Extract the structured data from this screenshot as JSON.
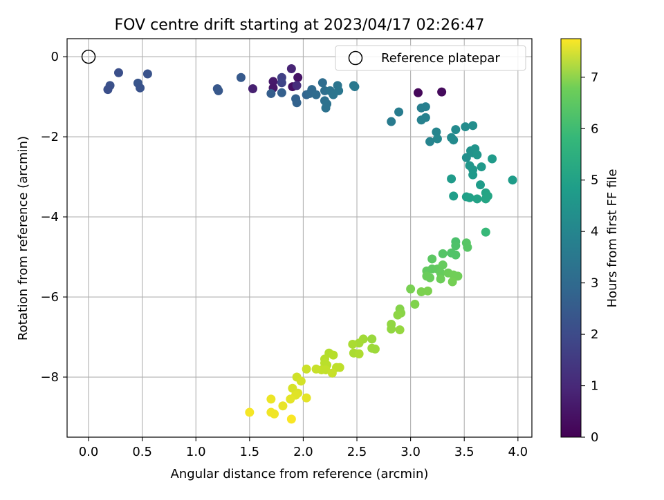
{
  "chart_data": {
    "type": "scatter",
    "title": "FOV centre drift starting at 2023/04/17 02:26:47",
    "xlabel": "Angular distance from reference (arcmin)",
    "ylabel": "Rotation from reference (arcmin)",
    "xlim": [
      -0.2,
      4.13
    ],
    "ylim": [
      -9.5,
      0.45
    ],
    "x_ticks": [
      0.0,
      0.5,
      1.0,
      1.5,
      2.0,
      2.5,
      3.0,
      3.5,
      4.0
    ],
    "x_tick_labels": [
      "0.0",
      "0.5",
      "1.0",
      "1.5",
      "2.0",
      "2.5",
      "3.0",
      "3.5",
      "4.0"
    ],
    "y_ticks": [
      0,
      -2,
      -4,
      -6,
      -8
    ],
    "y_tick_labels": [
      "0",
      "−2",
      "−4",
      "−6",
      "−8"
    ],
    "grid": true,
    "legend": {
      "position": "top-right",
      "entries": [
        "Reference platepar"
      ]
    },
    "reference_point": {
      "x": 0.0,
      "y": 0.0
    },
    "colorbar": {
      "label": "Hours from first FF file",
      "colormap": "viridis",
      "range": [
        0,
        7.75
      ],
      "ticks": [
        0,
        1,
        2,
        3,
        4,
        5,
        6,
        7
      ],
      "tick_labels": [
        "0",
        "1",
        "2",
        "3",
        "4",
        "5",
        "6",
        "7"
      ]
    },
    "points": [
      [
        1.9,
        -0.75,
        0.3
      ],
      [
        1.95,
        -0.52,
        0.4
      ],
      [
        1.72,
        -0.62,
        0.55
      ],
      [
        1.72,
        -0.78,
        0.5
      ],
      [
        1.53,
        -0.8,
        0.7
      ],
      [
        3.07,
        -0.9,
        0.15
      ],
      [
        3.29,
        -0.88,
        0.2
      ],
      [
        1.89,
        -0.3,
        0.8
      ],
      [
        1.94,
        -0.72,
        1.0
      ],
      [
        1.8,
        -0.52,
        1.5
      ],
      [
        1.8,
        -0.65,
        1.6
      ],
      [
        0.28,
        -0.4,
        1.9
      ],
      [
        0.55,
        -0.43,
        2.0
      ],
      [
        0.2,
        -0.72,
        1.95
      ],
      [
        0.18,
        -0.82,
        1.9
      ],
      [
        0.46,
        -0.66,
        2.05
      ],
      [
        0.48,
        -0.78,
        2.0
      ],
      [
        1.2,
        -0.8,
        2.1
      ],
      [
        1.21,
        -0.85,
        2.15
      ],
      [
        1.42,
        -0.52,
        2.2
      ],
      [
        1.7,
        -0.92,
        2.3
      ],
      [
        1.8,
        -0.9,
        2.35
      ],
      [
        1.93,
        -1.05,
        2.4
      ],
      [
        1.94,
        -1.15,
        2.45
      ],
      [
        2.03,
        -0.95,
        2.5
      ],
      [
        2.06,
        -0.92,
        2.6
      ],
      [
        2.08,
        -0.82,
        2.65
      ],
      [
        2.12,
        -0.95,
        2.7
      ],
      [
        2.18,
        -0.65,
        2.75
      ],
      [
        2.2,
        -0.85,
        2.8
      ],
      [
        2.2,
        -1.1,
        2.85
      ],
      [
        2.21,
        -1.28,
        2.9
      ],
      [
        2.22,
        -1.18,
        2.9
      ],
      [
        2.25,
        -0.85,
        2.95
      ],
      [
        2.28,
        -0.95,
        3.0
      ],
      [
        2.32,
        -0.72,
        3.0
      ],
      [
        2.33,
        -0.85,
        3.05
      ],
      [
        2.47,
        -0.72,
        3.1
      ],
      [
        2.48,
        -0.75,
        3.1
      ],
      [
        2.82,
        -1.62,
        3.2
      ],
      [
        2.89,
        -1.38,
        3.25
      ],
      [
        3.1,
        -1.28,
        3.3
      ],
      [
        3.14,
        -1.25,
        3.35
      ],
      [
        3.1,
        -1.58,
        3.4
      ],
      [
        3.14,
        -1.52,
        3.4
      ],
      [
        3.18,
        -2.12,
        3.5
      ],
      [
        3.24,
        -1.88,
        3.55
      ],
      [
        3.25,
        -2.05,
        3.6
      ],
      [
        3.38,
        -2.02,
        3.65
      ],
      [
        3.4,
        -2.08,
        3.7
      ],
      [
        3.42,
        -1.82,
        3.7
      ],
      [
        3.51,
        -1.75,
        3.75
      ],
      [
        3.58,
        -1.72,
        3.8
      ],
      [
        3.52,
        -2.52,
        3.85
      ],
      [
        3.56,
        -2.35,
        3.9
      ],
      [
        3.58,
        -2.4,
        3.95
      ],
      [
        3.6,
        -2.3,
        4.0
      ],
      [
        3.62,
        -2.45,
        4.05
      ],
      [
        3.55,
        -2.72,
        4.05
      ],
      [
        3.58,
        -2.82,
        4.1
      ],
      [
        3.58,
        -2.95,
        4.15
      ],
      [
        3.66,
        -2.75,
        4.15
      ],
      [
        3.76,
        -2.55,
        4.2
      ],
      [
        3.38,
        -3.05,
        4.2
      ],
      [
        3.65,
        -3.2,
        4.25
      ],
      [
        3.95,
        -3.08,
        4.25
      ],
      [
        3.4,
        -3.48,
        4.3
      ],
      [
        3.52,
        -3.5,
        4.35
      ],
      [
        3.55,
        -3.52,
        4.4
      ],
      [
        3.62,
        -3.55,
        4.45
      ],
      [
        3.7,
        -3.4,
        4.5
      ],
      [
        3.7,
        -3.55,
        4.55
      ],
      [
        3.72,
        -3.48,
        4.55
      ],
      [
        3.7,
        -4.38,
        5.2
      ],
      [
        3.42,
        -4.62,
        5.5
      ],
      [
        3.42,
        -4.72,
        5.55
      ],
      [
        3.38,
        -4.9,
        5.6
      ],
      [
        3.42,
        -4.95,
        5.6
      ],
      [
        3.3,
        -4.92,
        5.65
      ],
      [
        3.52,
        -4.65,
        5.7
      ],
      [
        3.53,
        -4.76,
        5.7
      ],
      [
        3.2,
        -5.05,
        5.75
      ],
      [
        3.2,
        -5.3,
        5.8
      ],
      [
        3.15,
        -5.35,
        5.85
      ],
      [
        3.25,
        -5.3,
        5.85
      ],
      [
        3.28,
        -5.4,
        5.9
      ],
      [
        3.3,
        -5.2,
        5.9
      ],
      [
        3.15,
        -5.48,
        5.95
      ],
      [
        3.18,
        -5.52,
        5.95
      ],
      [
        3.28,
        -5.55,
        6.0
      ],
      [
        3.35,
        -5.4,
        6.0
      ],
      [
        3.4,
        -5.45,
        6.05
      ],
      [
        3.44,
        -5.48,
        6.05
      ],
      [
        3.39,
        -5.62,
        6.1
      ],
      [
        3.0,
        -5.8,
        6.15
      ],
      [
        3.1,
        -5.87,
        6.2
      ],
      [
        3.16,
        -5.85,
        6.2
      ],
      [
        3.04,
        -6.18,
        6.25
      ],
      [
        2.9,
        -6.3,
        6.3
      ],
      [
        2.91,
        -6.4,
        6.35
      ],
      [
        2.88,
        -6.45,
        6.4
      ],
      [
        2.82,
        -6.68,
        6.45
      ],
      [
        2.82,
        -6.8,
        6.45
      ],
      [
        2.9,
        -6.82,
        6.5
      ],
      [
        2.64,
        -7.05,
        6.55
      ],
      [
        2.64,
        -7.28,
        6.6
      ],
      [
        2.67,
        -7.3,
        6.6
      ],
      [
        2.56,
        -7.05,
        6.65
      ],
      [
        2.52,
        -7.15,
        6.7
      ],
      [
        2.46,
        -7.18,
        6.75
      ],
      [
        2.47,
        -7.4,
        6.75
      ],
      [
        2.52,
        -7.42,
        6.8
      ],
      [
        2.24,
        -7.4,
        6.85
      ],
      [
        2.28,
        -7.45,
        6.9
      ],
      [
        2.2,
        -7.55,
        6.9
      ],
      [
        2.2,
        -7.65,
        6.95
      ],
      [
        2.22,
        -7.7,
        6.95
      ],
      [
        2.31,
        -7.76,
        7.0
      ],
      [
        2.34,
        -7.76,
        7.0
      ],
      [
        2.17,
        -7.82,
        7.05
      ],
      [
        2.21,
        -7.82,
        7.05
      ],
      [
        2.27,
        -7.9,
        7.1
      ],
      [
        2.12,
        -7.8,
        7.1
      ],
      [
        2.03,
        -7.8,
        7.15
      ],
      [
        1.94,
        -8.0,
        7.2
      ],
      [
        1.98,
        -8.1,
        7.25
      ],
      [
        1.9,
        -8.28,
        7.3
      ],
      [
        1.95,
        -8.4,
        7.35
      ],
      [
        1.93,
        -8.45,
        7.4
      ],
      [
        1.88,
        -8.55,
        7.45
      ],
      [
        2.03,
        -8.52,
        7.45
      ],
      [
        1.81,
        -8.72,
        7.5
      ],
      [
        1.7,
        -8.55,
        7.55
      ],
      [
        1.7,
        -8.88,
        7.6
      ],
      [
        1.73,
        -8.92,
        7.6
      ],
      [
        1.5,
        -8.88,
        7.65
      ],
      [
        1.89,
        -9.05,
        7.7
      ]
    ]
  }
}
